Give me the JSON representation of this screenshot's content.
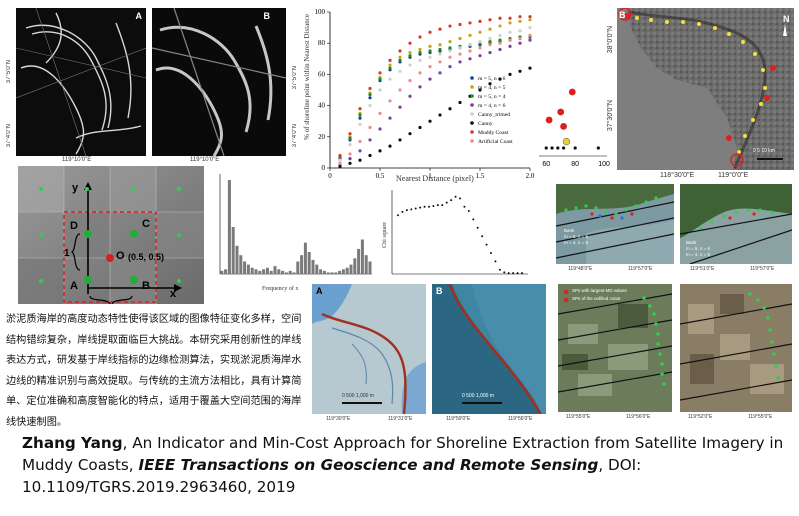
{
  "panel_a_label": "A",
  "panel_b_label": "B",
  "panel_a_x_tick": "119°10'0\"E",
  "panel_b_x_tick": "119°10'0\"E",
  "panel_ab_y_ticks": [
    "37°5'0\"N",
    "37°4'0\"N"
  ],
  "line_chart": {
    "ylabel": "% of shoreline point within Nearest Distance",
    "xlabel": "Nearest Distance (pixel)",
    "x_ticks": [
      "0",
      "0.5",
      "1",
      "1.5",
      "2.0"
    ],
    "y_ticks": [
      "0",
      "20",
      "40",
      "60",
      "80",
      "100"
    ]
  },
  "chart_data": [
    {
      "type": "scatter",
      "xlabel": "Nearest Distance (pixel)",
      "ylabel": "% of shoreline point within Nearest Distance",
      "xlim": [
        0,
        2
      ],
      "ylim": [
        0,
        100
      ],
      "legend_position": "right",
      "series": [
        {
          "name": "m = 5, n = 6",
          "color": "#1a3c9e",
          "x": [
            0.1,
            0.2,
            0.3,
            0.4,
            0.5,
            0.6,
            0.7,
            0.8,
            0.9,
            1.0,
            1.1,
            1.2,
            1.3,
            1.4,
            1.5,
            1.6,
            1.7,
            1.8,
            1.9,
            2.0
          ],
          "y": [
            6,
            18,
            32,
            45,
            56,
            63,
            68,
            71,
            73,
            74,
            75,
            76,
            77,
            78,
            79,
            80,
            81,
            82,
            83,
            84
          ]
        },
        {
          "name": "m = 4, n = 5",
          "color": "#c8a414",
          "x": [
            0.1,
            0.2,
            0.3,
            0.4,
            0.5,
            0.6,
            0.7,
            0.8,
            0.9,
            1.0,
            1.1,
            1.2,
            1.3,
            1.4,
            1.5,
            1.6,
            1.7,
            1.8,
            1.9,
            2.0
          ],
          "y": [
            7,
            20,
            35,
            48,
            58,
            66,
            71,
            74,
            76,
            78,
            79,
            81,
            83,
            85,
            87,
            89,
            91,
            93,
            94,
            95
          ]
        },
        {
          "name": "m = 5, n = 4",
          "color": "#1e8a2e",
          "x": [
            0.1,
            0.2,
            0.3,
            0.4,
            0.5,
            0.6,
            0.7,
            0.8,
            0.9,
            1.0,
            1.1,
            1.2,
            1.3,
            1.4,
            1.5,
            1.6,
            1.7,
            1.8,
            1.9,
            2.0
          ],
          "y": [
            7,
            19,
            34,
            47,
            57,
            64,
            69,
            72,
            74,
            75,
            76,
            77,
            78,
            79,
            80,
            81,
            82,
            83,
            84,
            84
          ]
        },
        {
          "name": "m = 4, n = 6",
          "color": "#7a3fa0",
          "x": [
            0.1,
            0.2,
            0.3,
            0.4,
            0.5,
            0.6,
            0.7,
            0.8,
            0.9,
            1.0,
            1.1,
            1.2,
            1.3,
            1.4,
            1.5,
            1.6,
            1.7,
            1.8,
            1.9,
            2.0
          ],
          "y": [
            2,
            6,
            11,
            18,
            25,
            32,
            39,
            46,
            52,
            57,
            61,
            65,
            68,
            70,
            72,
            74,
            76,
            78,
            80,
            82
          ]
        },
        {
          "name": "Canny_trimed",
          "color": "#d0d0d0",
          "x": [
            0.1,
            0.2,
            0.3,
            0.4,
            0.5,
            0.6,
            0.7,
            0.8,
            0.9,
            1.0,
            1.1,
            1.2,
            1.3,
            1.4,
            1.5,
            1.6,
            1.7,
            1.8,
            1.9,
            2.0
          ],
          "y": [
            5,
            15,
            28,
            40,
            50,
            57,
            62,
            66,
            69,
            71,
            73,
            75,
            77,
            79,
            81,
            83,
            85,
            87,
            88,
            90
          ]
        },
        {
          "name": "Canny",
          "color": "#111111",
          "x": [
            0.1,
            0.2,
            0.3,
            0.4,
            0.5,
            0.6,
            0.7,
            0.8,
            0.9,
            1.0,
            1.1,
            1.2,
            1.3,
            1.4,
            1.5,
            1.6,
            1.7,
            1.8,
            1.9,
            2.0
          ],
          "y": [
            1,
            3,
            5,
            8,
            11,
            14,
            18,
            22,
            26,
            30,
            34,
            38,
            42,
            46,
            50,
            54,
            57,
            60,
            62,
            64
          ]
        },
        {
          "name": "Muddy Coast",
          "color": "#d43a2a",
          "x": [
            0.1,
            0.2,
            0.3,
            0.4,
            0.5,
            0.6,
            0.7,
            0.8,
            0.9,
            1.0,
            1.1,
            1.2,
            1.3,
            1.4,
            1.5,
            1.6,
            1.7,
            1.8,
            1.9,
            2.0
          ],
          "y": [
            8,
            22,
            38,
            51,
            61,
            69,
            75,
            80,
            84,
            87,
            89,
            91,
            92,
            93,
            94,
            95,
            96,
            96,
            97,
            97
          ]
        },
        {
          "name": "Artificial Coast",
          "color": "#f08a8a",
          "x": [
            0.1,
            0.2,
            0.3,
            0.4,
            0.5,
            0.6,
            0.7,
            0.8,
            0.9,
            1.0,
            1.1,
            1.2,
            1.3,
            1.4,
            1.5,
            1.6,
            1.7,
            1.8,
            1.9,
            2.0
          ],
          "y": [
            3,
            9,
            17,
            26,
            35,
            43,
            50,
            56,
            61,
            65,
            68,
            71,
            73,
            75,
            77,
            79,
            80,
            82,
            83,
            85
          ]
        }
      ]
    },
    {
      "type": "scatter",
      "x_ticks": [
        "60",
        "80",
        "100"
      ],
      "points": [
        {
          "x": 78,
          "y": 0.8,
          "color": "#d82020"
        },
        {
          "x": 70,
          "y": 0.55,
          "color": "#d82020"
        },
        {
          "x": 62,
          "y": 0.45,
          "color": "#d82020"
        },
        {
          "x": 72,
          "y": 0.37,
          "color": "#d82020"
        },
        {
          "x": 74,
          "y": 0.18,
          "color": "#f0d02a"
        },
        {
          "x": 60,
          "y": 0.1,
          "color": "#111111"
        },
        {
          "x": 64,
          "y": 0.1,
          "color": "#111111"
        },
        {
          "x": 68,
          "y": 0.1,
          "color": "#111111"
        },
        {
          "x": 72,
          "y": 0.1,
          "color": "#111111"
        },
        {
          "x": 80,
          "y": 0.1,
          "color": "#111111"
        },
        {
          "x": 96,
          "y": 0.1,
          "color": "#111111"
        }
      ]
    },
    {
      "type": "bar",
      "xlabel": "Frequency of x",
      "values": [
        2,
        3,
        60,
        30,
        18,
        12,
        8,
        6,
        4,
        3,
        2,
        3,
        4,
        2,
        5,
        3,
        2,
        1,
        2,
        1,
        8,
        12,
        20,
        14,
        9,
        6,
        3,
        2,
        1,
        1,
        1,
        2,
        3,
        4,
        6,
        10,
        16,
        22,
        12,
        8
      ]
    },
    {
      "type": "scatter",
      "ylabel": "Chi square",
      "y_values": [
        0.7,
        0.74,
        0.76,
        0.77,
        0.78,
        0.79,
        0.8,
        0.8,
        0.81,
        0.82,
        0.82,
        0.85,
        0.88,
        0.92,
        0.9,
        0.8,
        0.75,
        0.65,
        0.55,
        0.45,
        0.35,
        0.25,
        0.15,
        0.05,
        0.02,
        0.01,
        0.01,
        0.01,
        0.01
      ]
    }
  ],
  "map_b": {
    "label": "B",
    "y_ticks": [
      "38°0'0\"N",
      "37°30'0\"N"
    ],
    "x_ticks": [
      "118°30'0\"E",
      "119°0'0\"E"
    ],
    "scale": "0   5   10 km"
  },
  "grid_diagram": {
    "axis_y": "y",
    "axis_x": "x",
    "points": [
      "A",
      "B",
      "C",
      "D",
      "O"
    ],
    "origin_label": "(0.5, 0.5)",
    "unit": "1"
  },
  "hist": {
    "xlabel": "Frequency of x"
  },
  "chi": {
    "ylabel": "Chi square"
  },
  "small_maps": {
    "a_x_ticks": [
      "119°48'0\"E",
      "119°57'0\"E"
    ],
    "b_x_ticks": [
      "119°51'0\"E",
      "119°57'0\"E"
    ],
    "a_legend": [
      "Bank",
      "m = 5, n = 6",
      "m = 4, n = 5"
    ],
    "b_legend": [
      "Bank",
      "m = 5, n = 6",
      "m = 4, n = 5"
    ]
  },
  "satellite_maps": {
    "a_label": "A",
    "b_label": "B",
    "a_x_ticks": [
      "119°30'0\"E",
      "119°31'0\"E"
    ],
    "b_x_ticks": [
      "119°59'0\"E",
      "119°56'0\"E"
    ],
    "a_scale": "0    500   1,000 m",
    "b_scale": "0    500   1,000 m"
  },
  "bottom_maps": {
    "a_x_ticks": [
      "119°55'0\"E",
      "119°56'0\"E"
    ],
    "b_x_ticks": [
      "119°52'0\"E",
      "119°55'0\"E"
    ],
    "a_legend": [
      "SPs with largest MD values",
      "SPs of the unfilled coast"
    ]
  },
  "chinese_text": "淤泥质海岸的高度动态特性使得该区域的图像特征变化多样，空间结构错综复杂，岸线提取面临巨大挑战。本研究采用创新性的岸线表达方式，研发基于岸线指标的边缘检测算法，实现淤泥质海岸水边线的精准识别与高效提取。与传统的主流方法相比，具有计算简单、定位准确和高度智能化的特点，适用于覆盖大空间范围的海岸线快速制图。",
  "citation": {
    "author": "Zhang Yang",
    "title": ", An Indicator and Min-Cost Approach for Shoreline Extraction from Satellite Imagery in Muddy Coasts,  ",
    "journal": "IEEE Transactions on Geoscience and Remote Sensing",
    "doi": ",  DOI: 10.1109/TGRS.2019.2963460,  2019"
  },
  "colors": {
    "land": "#3c3c3c",
    "sea_map": "#6f9fc8",
    "muddy": "#8aa5a0",
    "shoreline": "#b0302a"
  }
}
